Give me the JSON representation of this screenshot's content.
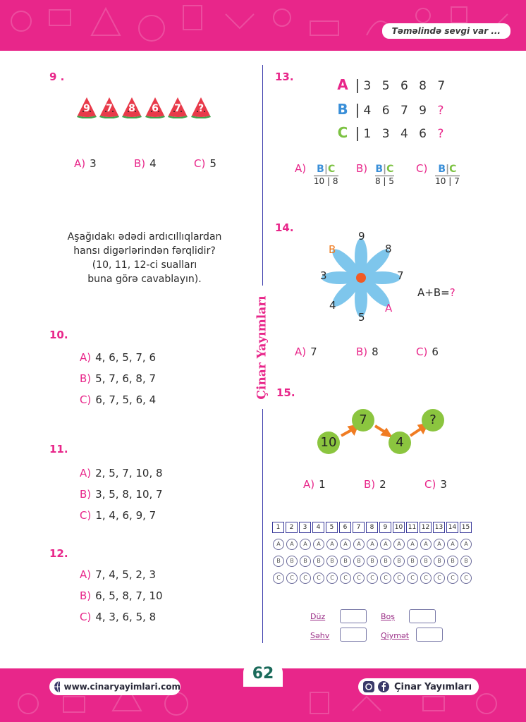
{
  "header": {
    "tagline": "Təməlində sevgi var ..."
  },
  "brand": "Çinar Yayımları",
  "page_number": "62",
  "footer": {
    "website": "www.cinaryayimlari.com",
    "social": "Çinar Yayımları"
  },
  "q9": {
    "num": "9 .",
    "slices": [
      "9",
      "7",
      "8",
      "6",
      "7",
      "?"
    ],
    "options": [
      {
        "l": "A)",
        "v": "3"
      },
      {
        "l": "B)",
        "v": "4"
      },
      {
        "l": "C)",
        "v": "5"
      }
    ]
  },
  "instruction": [
    "Aşağıdakı ədədi ardıcıllıqlardan",
    "hansı digərlərindən fərqlidir?",
    "(10, 11, 12-ci sualları",
    "buna görə cavablayın)."
  ],
  "q10": {
    "num": "10.",
    "options": [
      {
        "l": "A)",
        "v": "4, 6, 5, 7, 6"
      },
      {
        "l": "B)",
        "v": "5, 7, 6, 8, 7"
      },
      {
        "l": "C)",
        "v": "6, 7, 5, 6, 4"
      }
    ]
  },
  "q11": {
    "num": "11.",
    "options": [
      {
        "l": "A)",
        "v": "2, 5, 7, 10, 8"
      },
      {
        "l": "B)",
        "v": "3, 5, 8, 10, 7"
      },
      {
        "l": "C)",
        "v": "1, 4, 6, 9, 7"
      }
    ]
  },
  "q12": {
    "num": "12.",
    "options": [
      {
        "l": "A)",
        "v": "7, 4, 5, 2, 3"
      },
      {
        "l": "B)",
        "v": "6, 5, 8, 7, 10"
      },
      {
        "l": "C)",
        "v": "4, 3, 6, 5, 8"
      }
    ]
  },
  "q13": {
    "num": "13.",
    "rows": [
      {
        "letter": "A",
        "color": "#e8268a",
        "nums": "3 5 6 8 7",
        "q": ""
      },
      {
        "letter": "B",
        "color": "#3a8fd8",
        "nums": "4 6 7 9",
        "q": "?"
      },
      {
        "letter": "C",
        "color": "#7cc242",
        "nums": "1 3 4 6",
        "q": "?"
      }
    ],
    "options": [
      {
        "l": "A)",
        "b": "10",
        "c": "8"
      },
      {
        "l": "B)",
        "b": "8",
        "c": "5"
      },
      {
        "l": "C)",
        "b": "10",
        "c": "7"
      }
    ],
    "mini_b": "B",
    "mini_c": "C"
  },
  "q14": {
    "num": "14.",
    "petals": {
      "top": "9",
      "top_right": "8",
      "left": "3",
      "right": "7",
      "bottom_left": "4",
      "bottom": "5",
      "marker_b": "B",
      "marker_a": "A"
    },
    "equation": "A+B=",
    "question": "?",
    "options": [
      {
        "l": "A)",
        "v": "7"
      },
      {
        "l": "B)",
        "v": "8"
      },
      {
        "l": "C)",
        "v": "6"
      }
    ]
  },
  "q15": {
    "num": "15.",
    "circles": [
      "10",
      "7",
      "4",
      "?"
    ],
    "options": [
      {
        "l": "A)",
        "v": "1"
      },
      {
        "l": "B)",
        "v": "2"
      },
      {
        "l": "C)",
        "v": "3"
      }
    ]
  },
  "answer_grid": {
    "numbers": [
      "1",
      "2",
      "3",
      "4",
      "5",
      "6",
      "7",
      "8",
      "9",
      "10",
      "11",
      "12",
      "13",
      "14",
      "15"
    ],
    "choices": [
      "A",
      "B",
      "C"
    ]
  },
  "score": {
    "duz": "Düz",
    "bos": "Boş",
    "sehv": "Səhv",
    "qiymet": "Qiymət"
  },
  "colors": {
    "accent": "#e8268a",
    "divider": "#3b3bab",
    "green": "#8bc53f",
    "blue": "#3a8fd8",
    "orange": "#f07c22"
  }
}
